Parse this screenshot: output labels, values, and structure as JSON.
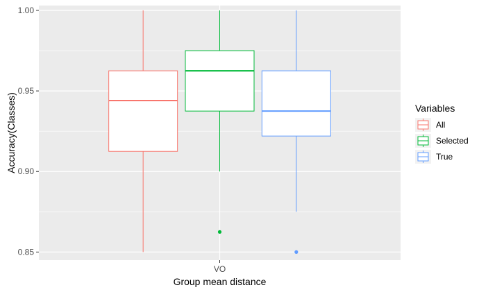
{
  "chart_data": {
    "type": "boxplot",
    "title": "",
    "xlabel": "Group mean distance",
    "ylabel": "Accuracy(Classes)",
    "categories": [
      "VO"
    ],
    "ylim": [
      0.845,
      1.003
    ],
    "yticks": [
      "0.85",
      "0.90",
      "0.95",
      "1.00"
    ],
    "grid": true,
    "legend": {
      "title": "Variables",
      "position": "right"
    },
    "series": [
      {
        "name": "All",
        "color": "#F8766D",
        "min": 0.85,
        "q1": 0.9125,
        "median": 0.944,
        "q3": 0.9625,
        "max": 1.0,
        "outliers": []
      },
      {
        "name": "Selected",
        "color": "#00BA38",
        "min": 0.9,
        "q1": 0.9375,
        "median": 0.9625,
        "q3": 0.975,
        "max": 1.0,
        "outliers": [
          0.8625
        ]
      },
      {
        "name": "True",
        "color": "#619CFF",
        "min": 0.875,
        "q1": 0.922,
        "median": 0.9375,
        "q3": 0.9625,
        "max": 1.0,
        "outliers": [
          0.85
        ]
      }
    ]
  }
}
